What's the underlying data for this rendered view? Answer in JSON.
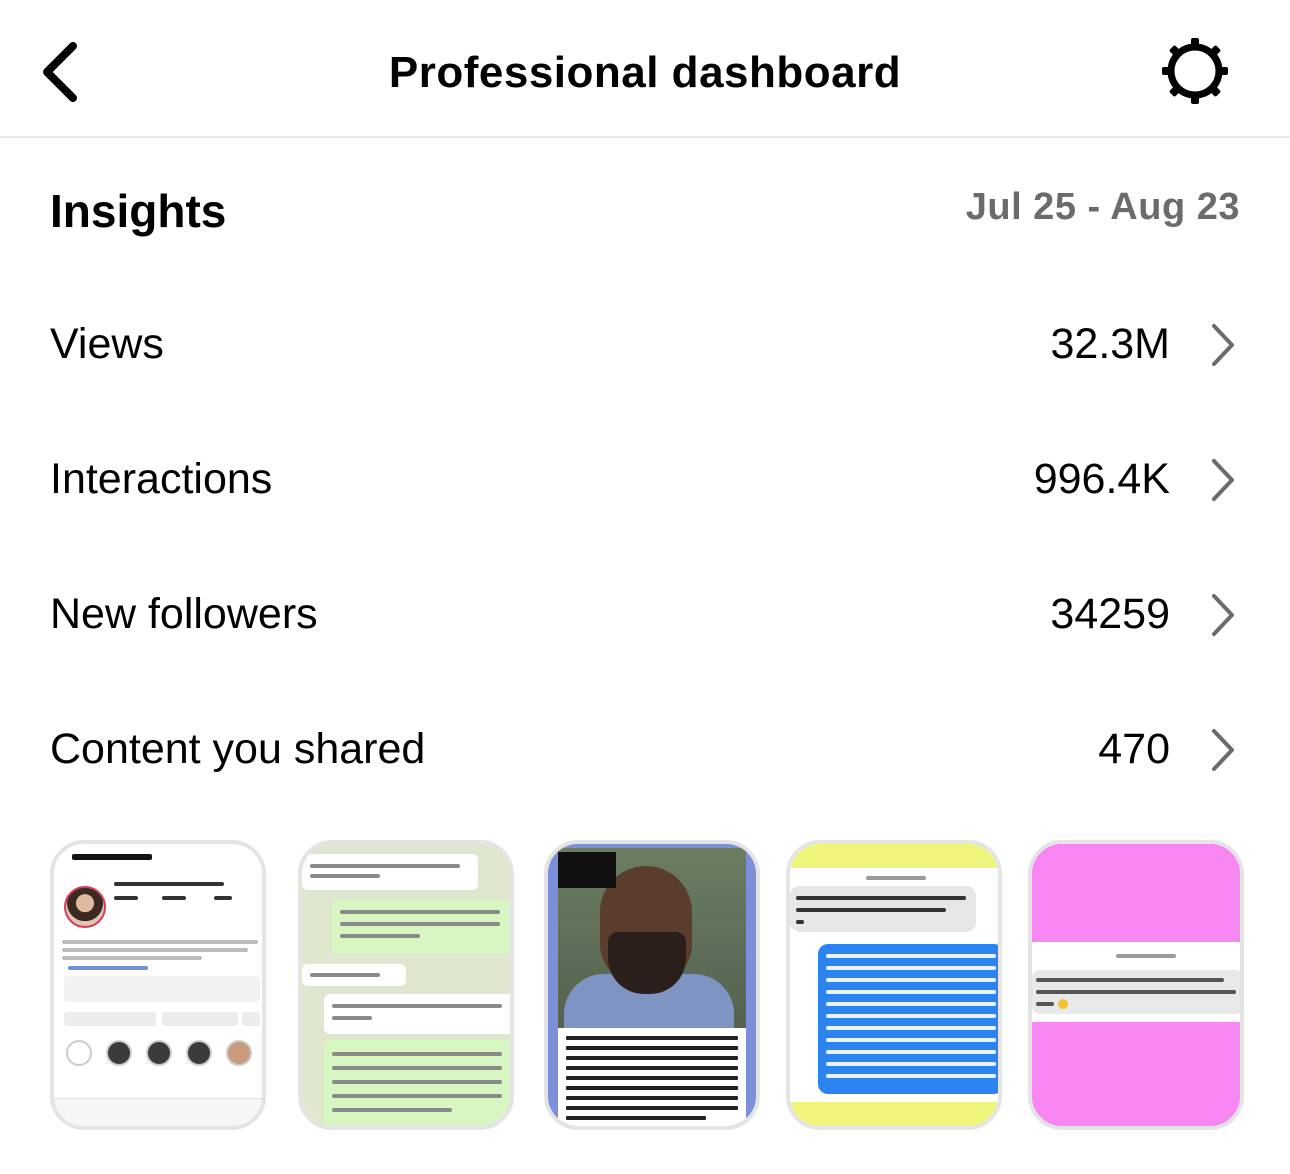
{
  "header": {
    "title": "Professional dashboard",
    "back_icon": "chevron-left-icon",
    "settings_icon": "gear-icon"
  },
  "insights": {
    "heading": "Insights",
    "date_range": "Jul 25 - Aug 23"
  },
  "metrics": [
    {
      "label": "Views",
      "value": "32.3M"
    },
    {
      "label": "Interactions",
      "value": "996.4K"
    },
    {
      "label": "New followers",
      "value": "34259"
    },
    {
      "label": "Content you shared",
      "value": "470"
    }
  ],
  "content_thumbnails": [
    {
      "description": "profile-screenshot"
    },
    {
      "description": "chat-screenshot"
    },
    {
      "description": "photo-post"
    },
    {
      "description": "message-screenshot"
    },
    {
      "description": "pink-message-screenshot"
    }
  ],
  "colors": {
    "date_range": "#6b6b6b",
    "divider": "#e9e9e9",
    "chevron": "#6b6b6b"
  }
}
